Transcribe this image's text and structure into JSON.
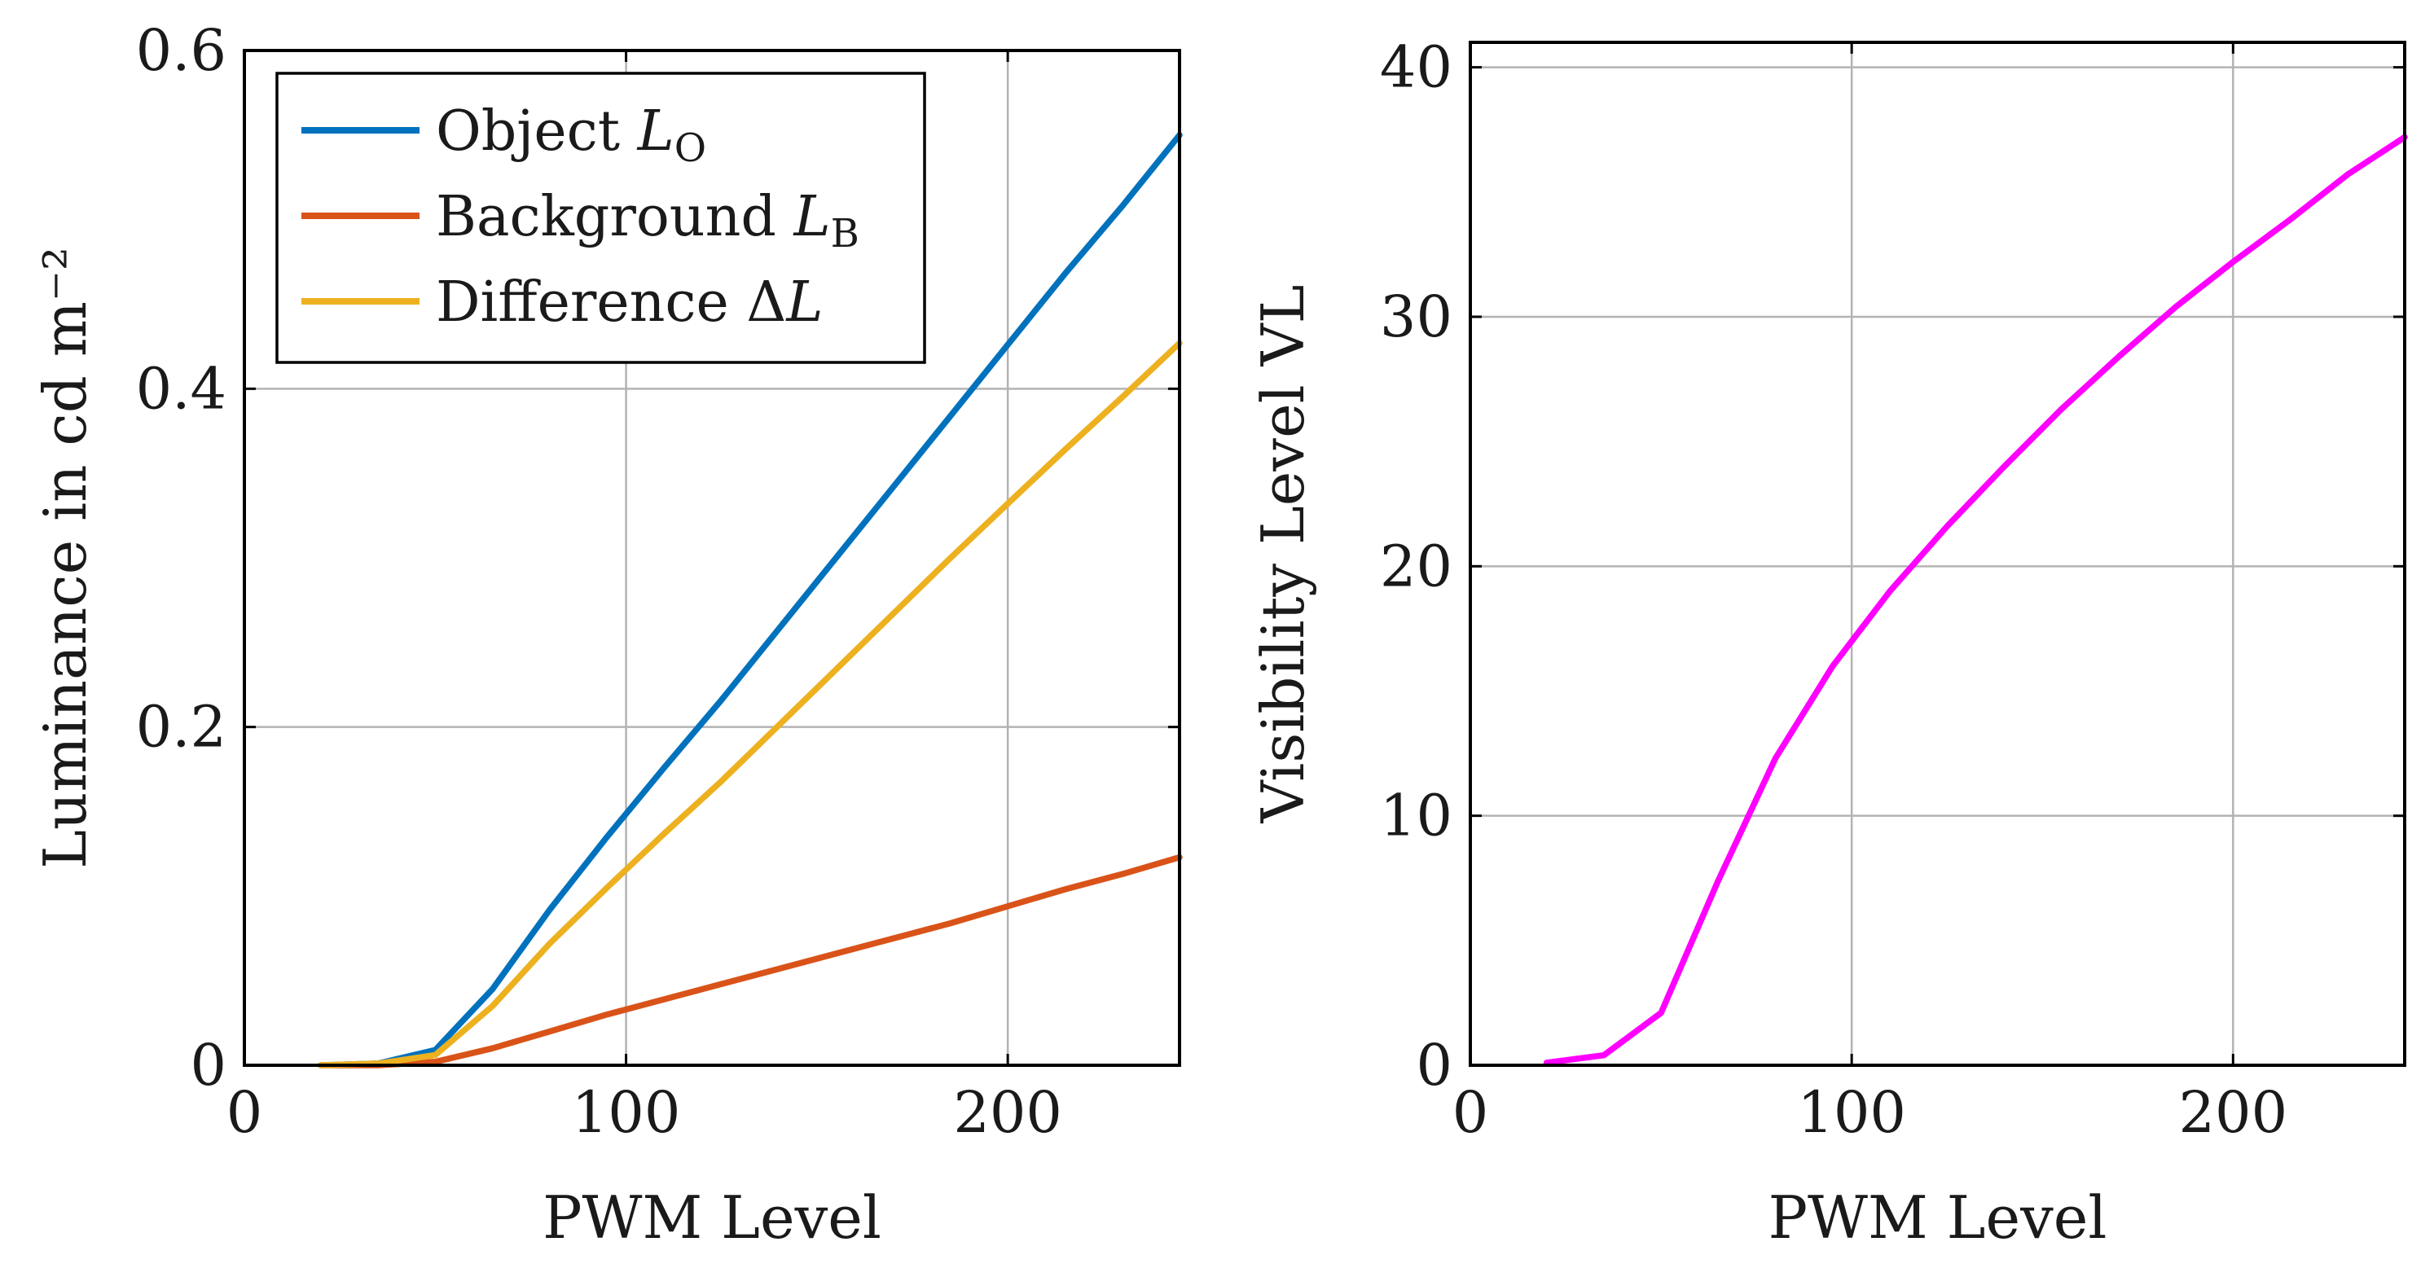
{
  "chart_data": [
    {
      "type": "line",
      "title": "",
      "xlabel": "PWM Level",
      "ylabel": "Luminance in cd m⁻²",
      "xlim": [
        0,
        245
      ],
      "ylim": [
        0,
        0.6
      ],
      "xticks": [
        0,
        100,
        200
      ],
      "xtick_labels": [
        "0",
        "100",
        "200"
      ],
      "yticks": [
        0,
        0.2,
        0.4,
        0.6
      ],
      "ytick_labels": [
        "0",
        "0.2",
        "0.4",
        "0.6"
      ],
      "grid": true,
      "legend_position": "top-left",
      "series": [
        {
          "name": "Object L_O",
          "label_main": "Object ",
          "label_var": "L",
          "label_sub": "O",
          "color": "#0072BD",
          "x": [
            20,
            35,
            50,
            65,
            80,
            95,
            110,
            125,
            140,
            155,
            170,
            185,
            200,
            215,
            230,
            245
          ],
          "y": [
            0,
            0.001,
            0.009,
            0.045,
            0.092,
            0.135,
            0.176,
            0.216,
            0.258,
            0.3,
            0.342,
            0.384,
            0.426,
            0.468,
            0.508,
            0.55
          ]
        },
        {
          "name": "Background L_B",
          "label_main": "Background ",
          "label_var": "L",
          "label_sub": "B",
          "color": "#D95319",
          "x": [
            20,
            35,
            50,
            65,
            80,
            95,
            110,
            125,
            140,
            155,
            170,
            185,
            200,
            215,
            230,
            245
          ],
          "y": [
            0,
            0,
            0.002,
            0.01,
            0.02,
            0.03,
            0.039,
            0.048,
            0.057,
            0.066,
            0.075,
            0.084,
            0.094,
            0.104,
            0.113,
            0.123
          ]
        },
        {
          "name": "Difference ΔL",
          "label_main": "Difference Δ",
          "label_var": "L",
          "label_sub": "",
          "color": "#EDB120",
          "x": [
            20,
            35,
            50,
            65,
            80,
            95,
            110,
            125,
            140,
            155,
            170,
            185,
            200,
            215,
            230,
            245
          ],
          "y": [
            0,
            0.001,
            0.006,
            0.035,
            0.072,
            0.105,
            0.137,
            0.168,
            0.201,
            0.234,
            0.267,
            0.3,
            0.332,
            0.364,
            0.395,
            0.427
          ]
        }
      ]
    },
    {
      "type": "line",
      "title": "",
      "xlabel": "PWM Level",
      "ylabel": "Visibility Level VL",
      "xlim": [
        0,
        245
      ],
      "ylim": [
        0,
        41
      ],
      "xticks": [
        0,
        100,
        200
      ],
      "xtick_labels": [
        "0",
        "100",
        "200"
      ],
      "yticks": [
        0,
        10,
        20,
        30,
        40
      ],
      "ytick_labels": [
        "0",
        "10",
        "20",
        "30",
        "40"
      ],
      "grid": true,
      "series": [
        {
          "name": "Visibility Level",
          "color": "#FF00FF",
          "x": [
            20,
            35,
            50,
            65,
            80,
            95,
            110,
            125,
            140,
            155,
            170,
            185,
            200,
            215,
            230,
            245
          ],
          "y": [
            0.1,
            0.4,
            2.1,
            7.4,
            12.3,
            16.0,
            19.0,
            21.6,
            24.0,
            26.3,
            28.4,
            30.4,
            32.2,
            33.9,
            35.7,
            37.2
          ]
        }
      ]
    }
  ]
}
